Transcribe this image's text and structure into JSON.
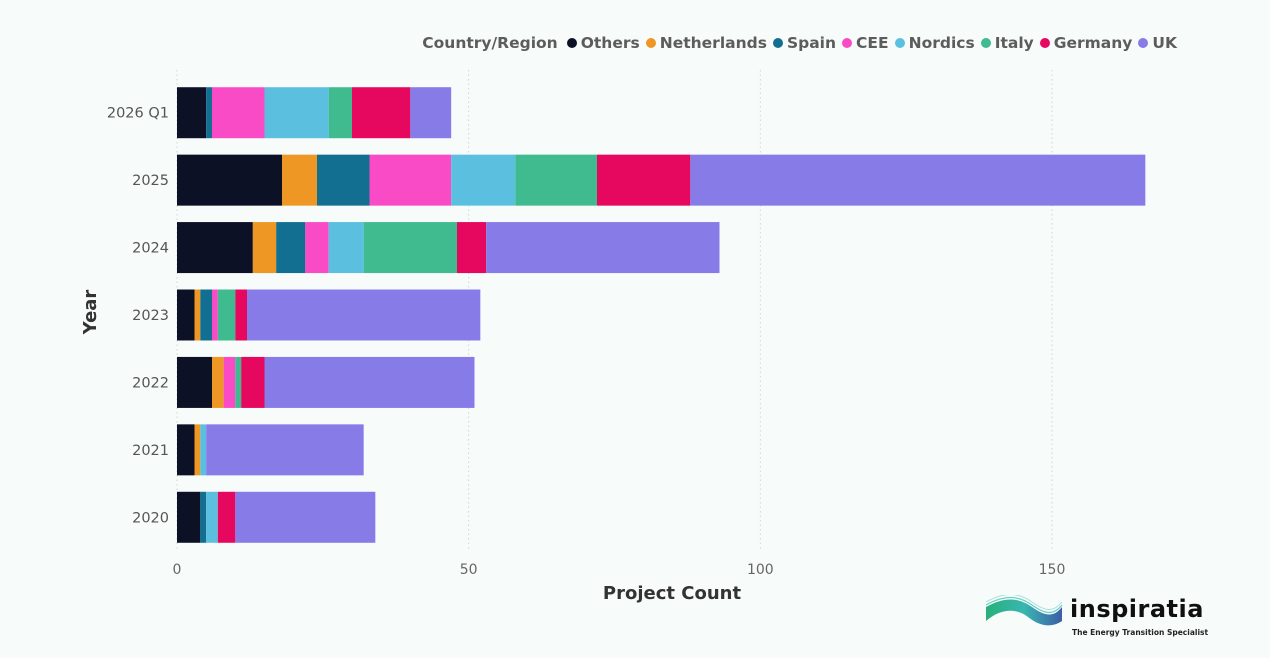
{
  "chart_data": {
    "type": "bar",
    "orientation": "horizontal",
    "stacked": true,
    "xlabel": "Project Count",
    "ylabel": "Year",
    "xlim": [
      0,
      180
    ],
    "xticks": [
      0,
      50,
      100,
      150
    ],
    "grid": "vertical-dotted",
    "legend_title": "Country/Region",
    "legend_position": "top-right",
    "categories": [
      "2026 Q1",
      "2025",
      "2024",
      "2023",
      "2022",
      "2021",
      "2020"
    ],
    "series": [
      {
        "name": "Others",
        "color": "#0d1126",
        "values": [
          5,
          18,
          13,
          3,
          6,
          3,
          4
        ]
      },
      {
        "name": "Netherlands",
        "color": "#ee9725",
        "values": [
          0,
          6,
          4,
          1,
          2,
          1,
          0
        ]
      },
      {
        "name": "Spain",
        "color": "#136f91",
        "values": [
          1,
          9,
          5,
          2,
          0,
          0,
          1
        ]
      },
      {
        "name": "CEE",
        "color": "#fa4bc6",
        "values": [
          9,
          14,
          4,
          1,
          2,
          0,
          0
        ]
      },
      {
        "name": "Nordics",
        "color": "#5bc0df",
        "values": [
          11,
          11,
          6,
          0,
          0,
          1,
          2
        ]
      },
      {
        "name": "Italy",
        "color": "#40bb8f",
        "values": [
          4,
          14,
          16,
          3,
          1,
          0,
          0
        ]
      },
      {
        "name": "Germany",
        "color": "#e6075f",
        "values": [
          10,
          16,
          5,
          2,
          4,
          0,
          3
        ]
      },
      {
        "name": "UK",
        "color": "#877be8",
        "values": [
          7,
          78,
          40,
          40,
          36,
          27,
          24
        ]
      }
    ]
  },
  "logo": {
    "name": "inspiratia",
    "tagline": "The Energy Transition Specialist"
  }
}
